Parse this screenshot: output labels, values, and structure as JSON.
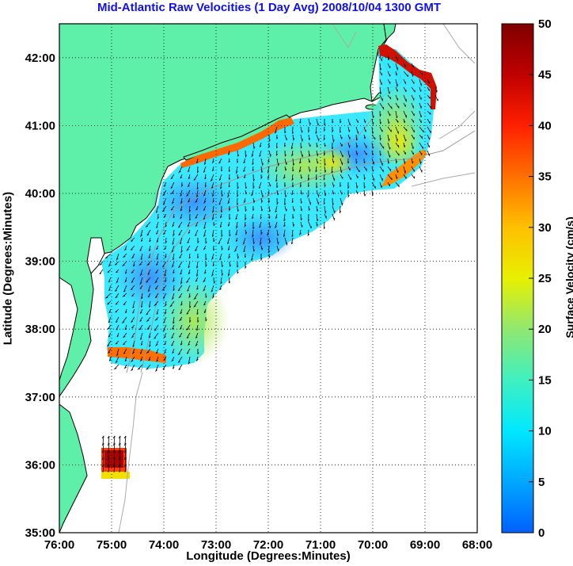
{
  "title": "Mid-Atlantic Raw Velocities (1 Day Avg) 2008/10/04 1300 GMT",
  "map": {
    "xlabel": "Longitude (Degrees:Minutes)",
    "ylabel": "Latitude (Degrees:Minutes)",
    "lon_range": [
      -76,
      -68
    ],
    "lat_range": [
      35,
      42.5
    ],
    "lon_ticks": [
      "76:00",
      "75:00",
      "74:00",
      "73:00",
      "72:00",
      "71:00",
      "70:00",
      "69:00",
      "68:00"
    ],
    "lat_ticks": [
      "35:00",
      "36:00",
      "37:00",
      "38:00",
      "39:00",
      "40:00",
      "41:00",
      "42:00"
    ],
    "land_color": "#5ef0a8",
    "ocean_color": "#ffffff",
    "grid": true,
    "grid_style": "dotted"
  },
  "colorbar": {
    "label": "Surface Velocity (cm/s)",
    "ticks": [
      "0",
      "5",
      "10",
      "15",
      "20",
      "25",
      "30",
      "35",
      "40",
      "45",
      "50"
    ],
    "range": [
      0,
      50
    ],
    "colormap": "jet",
    "colors": [
      "#0060ff",
      "#00a8ff",
      "#00e8ff",
      "#40f0c0",
      "#90e870",
      "#e8f000",
      "#ffc000",
      "#ff7000",
      "#ff2000",
      "#c00000",
      "#800000"
    ]
  }
}
